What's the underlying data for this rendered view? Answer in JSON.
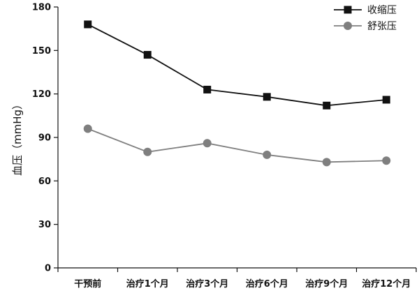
{
  "chart_data": {
    "type": "line",
    "title": "",
    "xlabel": "",
    "ylabel": "血压（mmHg）",
    "categories": [
      "干预前",
      "治疗1个月",
      "治疗3个月",
      "治疗6个月",
      "治疗9个月",
      "治疗12个月"
    ],
    "ylim": [
      0,
      180
    ],
    "yticks": [
      0,
      30,
      60,
      90,
      120,
      150,
      180
    ],
    "grid": false,
    "legend_position": "top-right",
    "series": [
      {
        "name": "收缩压",
        "marker": "square",
        "color": "#111111",
        "values": [
          168,
          147,
          123,
          118,
          112,
          116
        ]
      },
      {
        "name": "舒张压",
        "marker": "circle",
        "color": "#7f7f7f",
        "values": [
          96,
          80,
          86,
          78,
          73,
          74
        ]
      }
    ]
  }
}
